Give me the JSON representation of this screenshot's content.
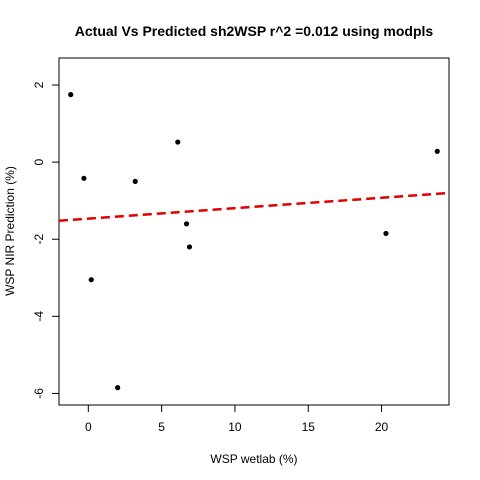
{
  "chart_data": {
    "type": "scatter",
    "title": "Actual Vs Predicted sh2WSP r^2 =0.012 using modpls",
    "xlabel": "WSP wetlab (%)",
    "ylabel": "WSP NIR Prediction (%)",
    "xlim": [
      -2.0,
      24.6
    ],
    "ylim": [
      -6.3,
      2.7
    ],
    "xticks": [
      0,
      5,
      10,
      15,
      20
    ],
    "yticks": [
      -6,
      -4,
      -2,
      0,
      2
    ],
    "xtick_labels": [
      "0",
      "5",
      "10",
      "15",
      "20"
    ],
    "ytick_labels": [
      "-6",
      "-4",
      "-2",
      "0",
      "2"
    ],
    "grid": false,
    "points": [
      {
        "x": -1.2,
        "y": 1.75
      },
      {
        "x": -0.3,
        "y": -0.42
      },
      {
        "x": 0.2,
        "y": -3.05
      },
      {
        "x": 2.0,
        "y": -5.85
      },
      {
        "x": 3.2,
        "y": -0.5
      },
      {
        "x": 6.1,
        "y": 0.52
      },
      {
        "x": 6.7,
        "y": -1.6
      },
      {
        "x": 6.9,
        "y": -2.2
      },
      {
        "x": 20.3,
        "y": -1.85
      },
      {
        "x": 23.8,
        "y": 0.28
      }
    ],
    "fit_line": {
      "x0": -2.0,
      "y0": -1.52,
      "x1": 24.6,
      "y1": -0.8,
      "color": "#e00000",
      "style": "dashed"
    },
    "point_color": "#000000"
  }
}
